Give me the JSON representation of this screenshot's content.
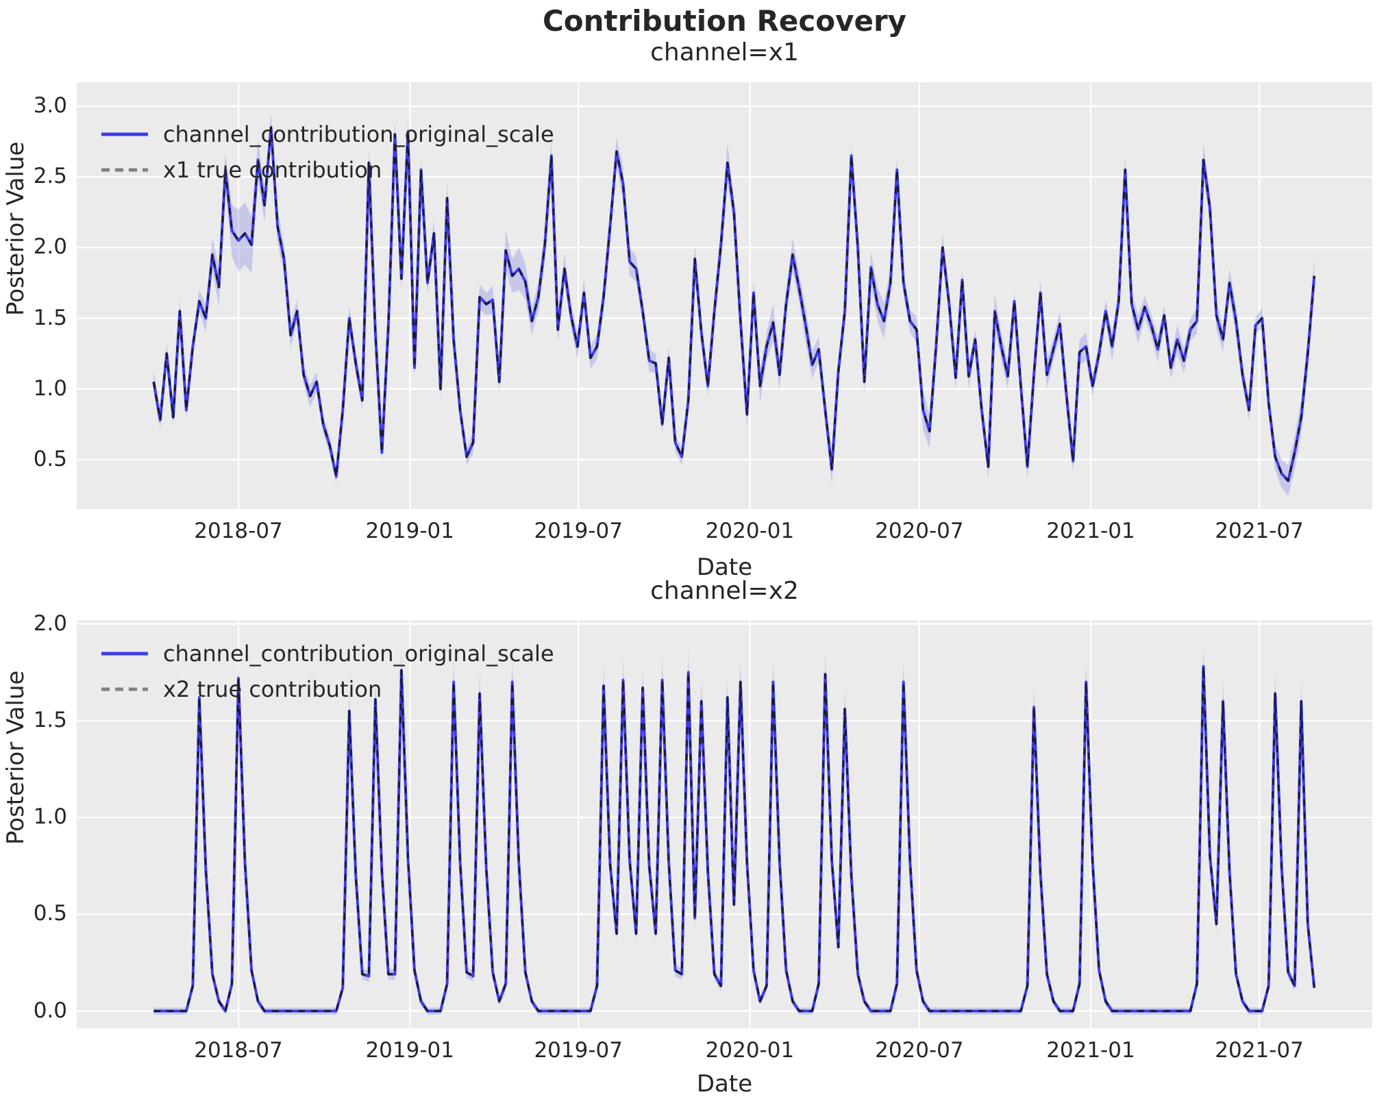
{
  "title": "Contribution Recovery",
  "colors": {
    "axes_background": "#ebebeb",
    "grid": "#ffffff",
    "posterior_line": "#3d3de8",
    "true_line_plot": "#1a1a3a",
    "true_line_legend": "#808080",
    "hdi_band": "rgba(90,95,225,0.25)",
    "text": "#262626"
  },
  "chart_data": [
    {
      "type": "line",
      "title": "channel=x1",
      "xlabel": "Date",
      "ylabel": "Posterior Value",
      "grid": true,
      "legend_position": "upper left",
      "x_unit": "weeks since 2018-04-01",
      "x_tick_labels": [
        "2018-07",
        "2019-01",
        "2019-07",
        "2020-01",
        "2020-07",
        "2021-01",
        "2021-07"
      ],
      "x_tick_weeks": [
        13.0,
        39.29,
        65.14,
        91.43,
        117.43,
        143.71,
        169.57
      ],
      "xlim_weeks": [
        -11.8,
        186.9
      ],
      "ylim": [
        0.15,
        3.17
      ],
      "y_ticks": [
        0.5,
        1.0,
        1.5,
        2.0,
        2.5,
        3.0
      ],
      "y_tick_labels": [
        "0.5",
        "1.0",
        "1.5",
        "2.0",
        "2.5",
        "3.0"
      ],
      "series": [
        {
          "name": "channel_contribution_original_scale",
          "style": "solid",
          "color": "#3d3de8",
          "values": [
            1.05,
            0.78,
            1.25,
            0.8,
            1.55,
            0.85,
            1.3,
            1.62,
            1.5,
            1.95,
            1.72,
            2.55,
            2.12,
            2.05,
            2.1,
            2.02,
            2.62,
            2.3,
            2.85,
            2.15,
            1.92,
            1.38,
            1.55,
            1.1,
            0.95,
            1.05,
            0.75,
            0.6,
            0.38,
            0.85,
            1.5,
            1.18,
            0.92,
            2.6,
            1.4,
            0.55,
            1.45,
            2.8,
            1.78,
            2.82,
            1.15,
            2.55,
            1.75,
            2.1,
            1.0,
            2.35,
            1.35,
            0.85,
            0.52,
            0.62,
            1.65,
            1.6,
            1.63,
            1.05,
            1.98,
            1.8,
            1.85,
            1.76,
            1.48,
            1.65,
            2.02,
            2.65,
            1.42,
            1.85,
            1.52,
            1.3,
            1.68,
            1.22,
            1.3,
            1.65,
            2.15,
            2.68,
            2.45,
            1.9,
            1.85,
            1.55,
            1.2,
            1.18,
            0.75,
            1.22,
            0.62,
            0.52,
            0.92,
            1.92,
            1.4,
            1.02,
            1.55,
            2.02,
            2.6,
            2.25,
            1.48,
            0.82,
            1.68,
            1.02,
            1.3,
            1.47,
            1.1,
            1.6,
            1.95,
            1.71,
            1.45,
            1.17,
            1.28,
            0.85,
            0.43,
            1.12,
            1.55,
            2.65,
            2.0,
            1.05,
            1.86,
            1.6,
            1.48,
            1.75,
            2.55,
            1.75,
            1.48,
            1.42,
            0.85,
            0.7,
            1.3,
            2.0,
            1.6,
            1.08,
            1.77,
            1.09,
            1.35,
            0.85,
            0.45,
            1.55,
            1.3,
            1.09,
            1.62,
            1.02,
            0.45,
            1.1,
            1.68,
            1.1,
            1.28,
            1.46,
            0.95,
            0.49,
            1.26,
            1.3,
            1.02,
            1.25,
            1.55,
            1.3,
            1.62,
            2.55,
            1.6,
            1.42,
            1.58,
            1.45,
            1.28,
            1.52,
            1.15,
            1.35,
            1.2,
            1.42,
            1.48,
            2.62,
            2.28,
            1.52,
            1.35,
            1.75,
            1.48,
            1.1,
            0.85,
            1.45,
            1.5,
            0.9,
            0.52,
            0.4,
            0.35,
            0.55,
            0.8,
            1.25,
            1.8
          ]
        },
        {
          "name": "x1 true contribution",
          "style": "dashed",
          "legend_color": "#808080",
          "plot_color": "#1a1a3a",
          "values_equal_to": "channel_contribution_original_scale"
        }
      ],
      "band": {
        "name": "posterior HDI",
        "color": "rgba(90,95,225,0.25)",
        "halfwidth": [
          0.08,
          0.06,
          0.07,
          0.06,
          0.09,
          0.06,
          0.07,
          0.08,
          0.1,
          0.12,
          0.14,
          0.12,
          0.18,
          0.22,
          0.22,
          0.2,
          0.14,
          0.12,
          0.1,
          0.12,
          0.1,
          0.09,
          0.08,
          0.07,
          0.08,
          0.07,
          0.06,
          0.06,
          0.05,
          0.07,
          0.09,
          0.08,
          0.07,
          0.1,
          0.08,
          0.06,
          0.08,
          0.1,
          0.09,
          0.1,
          0.08,
          0.09,
          0.08,
          0.1,
          0.07,
          0.12,
          0.09,
          0.07,
          0.06,
          0.08,
          0.09,
          0.08,
          0.1,
          0.08,
          0.14,
          0.12,
          0.15,
          0.13,
          0.1,
          0.1,
          0.12,
          0.1,
          0.09,
          0.1,
          0.08,
          0.09,
          0.1,
          0.08,
          0.09,
          0.1,
          0.12,
          0.1,
          0.12,
          0.1,
          0.09,
          0.08,
          0.08,
          0.07,
          0.06,
          0.08,
          0.06,
          0.06,
          0.08,
          0.1,
          0.08,
          0.07,
          0.1,
          0.12,
          0.14,
          0.09,
          0.12,
          0.1,
          0.09,
          0.12,
          0.1,
          0.13,
          0.11,
          0.09,
          0.12,
          0.1,
          0.13,
          0.1,
          0.09,
          0.07,
          0.11,
          0.09,
          0.1,
          0.07,
          0.06,
          0.08,
          0.11,
          0.12,
          0.13,
          0.1,
          0.09,
          0.08,
          0.08,
          0.09,
          0.14,
          0.12,
          0.13,
          0.1,
          0.08,
          0.09,
          0.08,
          0.09,
          0.07,
          0.06,
          0.09,
          0.12,
          0.1,
          0.09,
          0.06,
          0.08,
          0.09,
          0.11,
          0.09,
          0.1,
          0.08,
          0.09,
          0.11,
          0.08,
          0.09,
          0.1,
          0.07,
          0.08,
          0.08,
          0.1,
          0.08,
          0.1,
          0.09,
          0.1,
          0.08,
          0.08,
          0.09,
          0.07,
          0.08,
          0.1,
          0.09,
          0.08,
          0.09,
          0.12,
          0.11,
          0.1,
          0.09,
          0.1,
          0.11,
          0.08,
          0.07,
          0.06,
          0.07,
          0.08,
          0.09,
          0.1,
          0.11,
          0.12,
          0.12,
          0.12,
          0.13
        ]
      }
    },
    {
      "type": "line",
      "title": "channel=x2",
      "xlabel": "Date",
      "ylabel": "Posterior Value",
      "grid": true,
      "legend_position": "upper left",
      "x_unit": "weeks since 2018-04-01",
      "x_tick_labels": [
        "2018-07",
        "2019-01",
        "2019-07",
        "2020-01",
        "2020-07",
        "2021-01",
        "2021-07"
      ],
      "x_tick_weeks": [
        13.0,
        39.29,
        65.14,
        91.43,
        117.43,
        143.71,
        169.57
      ],
      "xlim_weeks": [
        -11.8,
        186.9
      ],
      "ylim": [
        -0.09,
        2.02
      ],
      "y_ticks": [
        0.0,
        0.5,
        1.0,
        1.5,
        2.0
      ],
      "y_tick_labels": [
        "0.0",
        "0.5",
        "1.0",
        "1.5",
        "2.0"
      ],
      "series": [
        {
          "name": "channel_contribution_original_scale",
          "style": "solid",
          "color": "#3d3de8",
          "values": [
            0,
            0,
            0,
            0,
            0,
            0,
            0.13,
            1.62,
            0.73,
            0.19,
            0.05,
            0,
            0.14,
            1.72,
            0.77,
            0.21,
            0.05,
            0,
            0,
            0,
            0,
            0,
            0,
            0,
            0,
            0,
            0,
            0,
            0,
            0.12,
            1.55,
            0.7,
            0.19,
            0.18,
            1.61,
            0.72,
            0.19,
            0.19,
            1.76,
            0.79,
            0.21,
            0.05,
            0,
            0,
            0,
            0.14,
            1.7,
            0.77,
            0.2,
            0.18,
            1.64,
            0.74,
            0.2,
            0.05,
            0.14,
            1.7,
            0.77,
            0.2,
            0.05,
            0,
            0,
            0,
            0,
            0,
            0,
            0,
            0,
            0,
            0.13,
            1.68,
            0.76,
            0.4,
            1.71,
            0.78,
            0.4,
            1.67,
            0.75,
            0.4,
            1.71,
            0.77,
            0.21,
            0.19,
            1.75,
            0.48,
            1.6,
            0.72,
            0.19,
            0.13,
            1.62,
            0.55,
            1.7,
            0.77,
            0.21,
            0.05,
            0.13,
            1.7,
            0.77,
            0.21,
            0.05,
            0,
            0,
            0,
            0.14,
            1.74,
            0.78,
            0.33,
            1.56,
            0.7,
            0.19,
            0.05,
            0,
            0,
            0,
            0,
            0.14,
            1.7,
            0.77,
            0.21,
            0.05,
            0,
            0,
            0,
            0,
            0,
            0,
            0,
            0,
            0,
            0,
            0,
            0,
            0,
            0,
            0,
            0.13,
            1.57,
            0.71,
            0.19,
            0.05,
            0,
            0,
            0,
            0.14,
            1.7,
            0.77,
            0.21,
            0.05,
            0,
            0,
            0,
            0,
            0,
            0,
            0,
            0,
            0,
            0,
            0,
            0,
            0,
            0.14,
            1.78,
            0.8,
            0.45,
            1.6,
            0.72,
            0.19,
            0.05,
            0,
            0,
            0,
            0.13,
            1.64,
            0.74,
            0.2,
            0.13,
            1.6,
            0.45,
            0.12
          ]
        },
        {
          "name": "x2 true contribution",
          "style": "dashed",
          "legend_color": "#808080",
          "plot_color": "#1a1a3a",
          "values_equal_to": "channel_contribution_original_scale"
        }
      ],
      "band": {
        "name": "posterior HDI",
        "color": "rgba(90,95,225,0.25)",
        "halfwidth_rule": {
          "base": 0.018,
          "scale_of_value": 0.055
        }
      }
    }
  ]
}
